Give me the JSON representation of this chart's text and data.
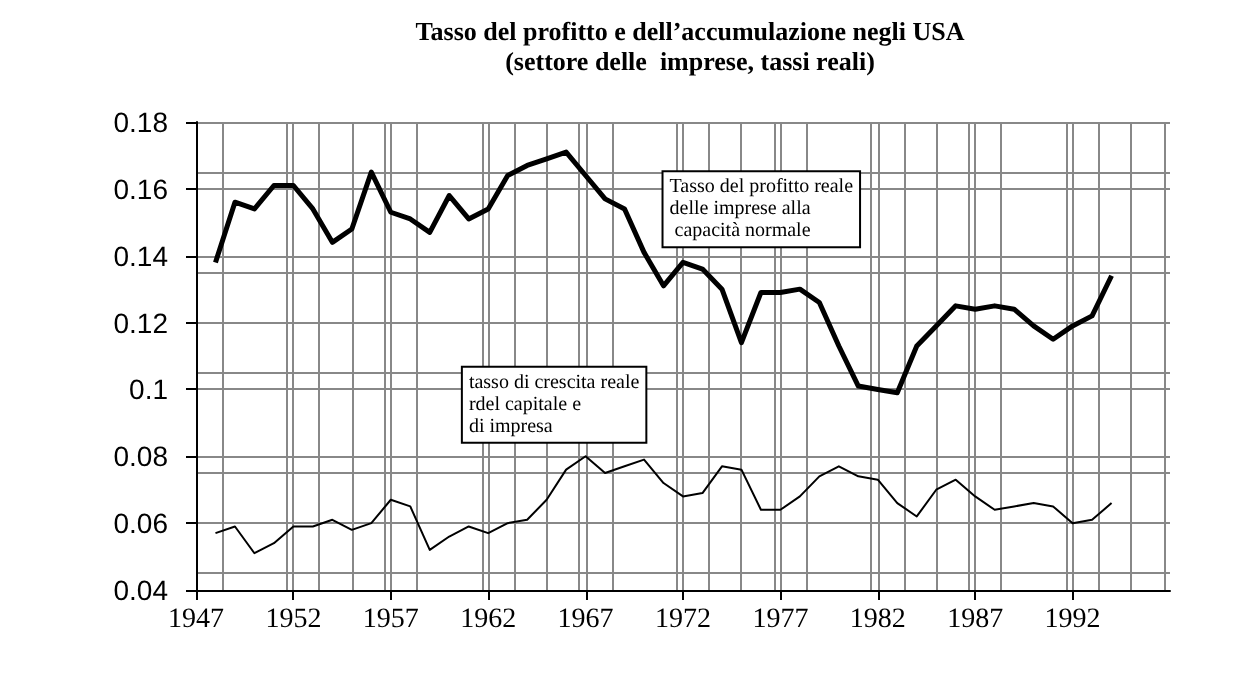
{
  "chart_data": {
    "type": "line",
    "title": "Tasso del profitto e dell’accumulazione negli USA",
    "subtitle": "(settore delle  imprese, tassi reali)",
    "x": [
      1948,
      1949,
      1950,
      1951,
      1952,
      1953,
      1954,
      1955,
      1956,
      1957,
      1958,
      1959,
      1960,
      1961,
      1962,
      1963,
      1964,
      1965,
      1966,
      1967,
      1968,
      1969,
      1970,
      1971,
      1972,
      1973,
      1974,
      1975,
      1976,
      1977,
      1978,
      1979,
      1980,
      1981,
      1982,
      1983,
      1984,
      1985,
      1986,
      1987,
      1988,
      1989,
      1990,
      1991,
      1992,
      1993,
      1994
    ],
    "series": [
      {
        "name": "Tasso del profitto reale\ndelle imprese alla\n capacità normale",
        "color": "#000000",
        "values": [
          0.138,
          0.156,
          0.154,
          0.161,
          0.161,
          0.154,
          0.144,
          0.148,
          0.165,
          0.153,
          0.151,
          0.147,
          0.158,
          0.151,
          0.154,
          0.164,
          0.167,
          0.169,
          0.171,
          0.164,
          0.157,
          0.154,
          0.141,
          0.131,
          0.138,
          0.136,
          0.13,
          0.114,
          0.129,
          0.129,
          0.13,
          0.126,
          0.113,
          0.101,
          0.1,
          0.099,
          0.113,
          0.119,
          0.125,
          0.124,
          0.125,
          0.124,
          0.119,
          0.115,
          0.119,
          0.122,
          0.134
        ]
      },
      {
        "name": "tasso di crescita reale\nrdel capitale e\ndi impresa",
        "color": "#000000",
        "values": [
          0.057,
          0.059,
          0.051,
          0.054,
          0.059,
          0.059,
          0.061,
          0.058,
          0.06,
          0.067,
          0.065,
          0.052,
          0.056,
          0.059,
          0.057,
          0.06,
          0.061,
          0.067,
          0.076,
          0.08,
          0.075,
          0.077,
          0.079,
          0.072,
          0.068,
          0.069,
          0.077,
          0.076,
          0.064,
          0.064,
          0.068,
          0.074,
          0.077,
          0.074,
          0.073,
          0.066,
          0.062,
          0.07,
          0.073,
          0.068,
          0.064,
          0.065,
          0.066,
          0.065,
          0.06,
          0.061,
          0.066
        ]
      }
    ],
    "xlim": [
      1947,
      1997
    ],
    "xticks": [
      1947,
      1952,
      1957,
      1962,
      1967,
      1972,
      1977,
      1982,
      1987,
      1992
    ],
    "ylim": [
      0.04,
      0.18
    ],
    "yticks": [
      {
        "value": 0.04,
        "label": "0.04"
      },
      {
        "value": 0.06,
        "label": "0.06"
      },
      {
        "value": 0.08,
        "label": "0.08"
      },
      {
        "value": 0.1,
        "label": "0.1"
      },
      {
        "value": 0.12,
        "label": "0.12"
      },
      {
        "value": 0.14,
        "label": "0.14"
      },
      {
        "value": 0.16,
        "label": "0.16"
      },
      {
        "value": 0.18,
        "label": "0.18"
      }
    ],
    "grid": true,
    "legend": false,
    "marker": "none",
    "line_style": "solid"
  }
}
